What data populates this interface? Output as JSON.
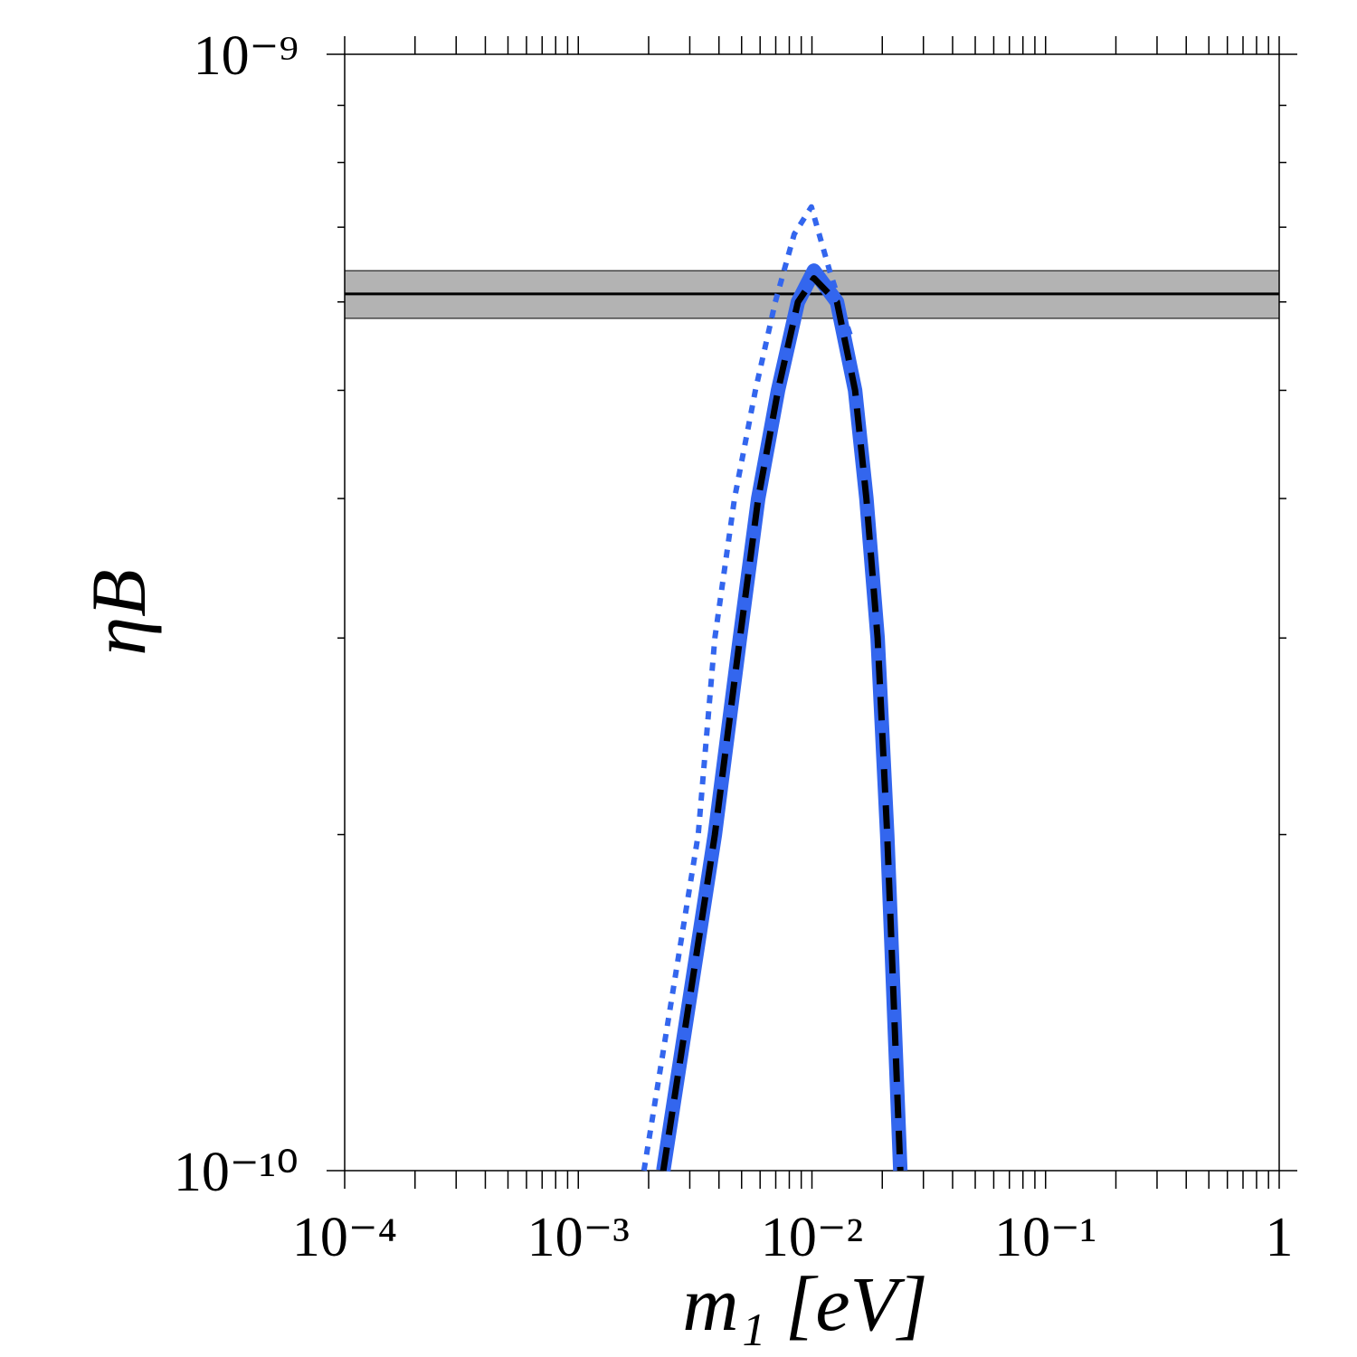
{
  "chart_data": {
    "type": "line",
    "x_label": "m₁ [eV]",
    "y_label": "ηB",
    "xscale": "log",
    "yscale": "log",
    "xlim": [
      0.0001,
      1
    ],
    "ylim": [
      1e-10,
      1e-09
    ],
    "xticks": [
      {
        "value": 0.0001,
        "label": "10⁻⁴"
      },
      {
        "value": 0.001,
        "label": "10⁻³"
      },
      {
        "value": 0.01,
        "label": "10⁻²"
      },
      {
        "value": 0.1,
        "label": "10⁻¹"
      },
      1
    ],
    "yticks": [
      {
        "value": 1e-10,
        "label": "10⁻¹⁰"
      },
      {
        "value": 1e-09,
        "label": "10⁻⁹"
      }
    ],
    "minor_ticks": true,
    "band": {
      "ylim": [
        5.8e-10,
        6.4e-10
      ],
      "color": "#b3b3b3"
    },
    "hline": 6.1e-10,
    "series": [
      {
        "color": "#3366ee",
        "style": "dotted",
        "x": [
          0.00191,
          0.00326,
          0.00384,
          0.00466,
          0.00573,
          0.00697,
          0.0084,
          0.00995,
          0.0119,
          0.0146
        ],
        "values": [
          1e-10,
          2e-10,
          3e-10,
          4e-10,
          5e-10,
          6e-10,
          6.9e-10,
          7.3e-10,
          6.4e-10,
          5.6e-10
        ]
      },
      {
        "color": "#3366ee",
        "style": "solid",
        "x": [
          0.00231,
          0.00384,
          0.00492,
          0.00589,
          0.00716,
          0.00871,
          0.0102,
          0.0128,
          0.0153,
          0.0171,
          0.0191,
          0.021,
          0.0239
        ],
        "values": [
          1e-10,
          2e-10,
          3e-10,
          4e-10,
          5e-10,
          6e-10,
          6.4e-10,
          6e-10,
          5e-10,
          4e-10,
          3e-10,
          2e-10,
          1e-10
        ]
      },
      {
        "color": "#000000",
        "style": "dashed",
        "x": [
          0.00231,
          0.00384,
          0.00492,
          0.00589,
          0.00716,
          0.00871,
          0.0102,
          0.0128,
          0.0153,
          0.0171,
          0.0191,
          0.021,
          0.0239
        ],
        "values": [
          1e-10,
          2e-10,
          3e-10,
          4e-10,
          5e-10,
          6e-10,
          6.3e-10,
          6e-10,
          5e-10,
          4e-10,
          3e-10,
          2e-10,
          1e-10
        ]
      }
    ]
  }
}
